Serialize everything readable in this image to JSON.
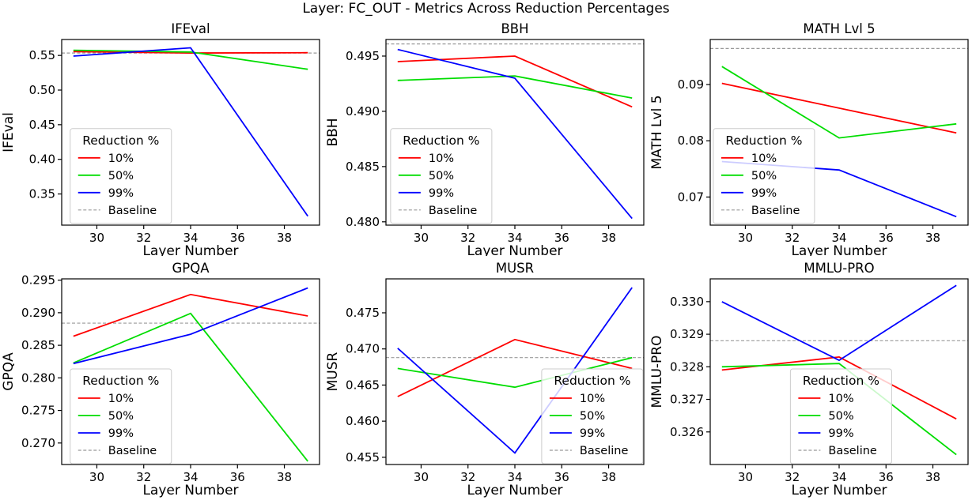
{
  "figure": {
    "title": "Layer: FC_OUT - Metrics Across Reduction Percentages"
  },
  "style": {
    "red": "#ff0000",
    "green": "#00dd00",
    "blue": "#0000ff",
    "baseline_color": "#999999",
    "axis_color": "#000000",
    "legend_border": "#cccccc"
  },
  "legend": {
    "title": "Reduction %",
    "entries": [
      {
        "label": "10%",
        "color": "#ff0000",
        "dashed": false
      },
      {
        "label": "50%",
        "color": "#00dd00",
        "dashed": false
      },
      {
        "label": "99%",
        "color": "#0000ff",
        "dashed": false
      },
      {
        "label": "Baseline",
        "color": "#999999",
        "dashed": true
      }
    ]
  },
  "chart_data": [
    {
      "type": "line",
      "title": "IFEval",
      "ylabel": "IFEval",
      "xlabel": "Layer Number",
      "x": [
        29,
        34,
        39
      ],
      "series": [
        {
          "name": "10%",
          "color": "#ff0000",
          "values": [
            0.5555,
            0.5535,
            0.554
          ]
        },
        {
          "name": "50%",
          "color": "#00dd00",
          "values": [
            0.5575,
            0.555,
            0.53
          ]
        },
        {
          "name": "99%",
          "color": "#0000ff",
          "values": [
            0.549,
            0.561,
            0.318
          ]
        }
      ],
      "baseline": 0.5535,
      "xlim": [
        28.5,
        39.5
      ],
      "ylim": [
        0.305,
        0.573
      ],
      "xticks": [
        30,
        32,
        34,
        36,
        38
      ],
      "yticks": [
        0.35,
        0.4,
        0.45,
        0.5,
        0.55
      ],
      "ytick_decimals": 2,
      "legend_pos": {
        "x": 0.033,
        "y": 0.48
      }
    },
    {
      "type": "line",
      "title": "BBH",
      "ylabel": "BBH",
      "xlabel": "Layer Number",
      "x": [
        29,
        34,
        39
      ],
      "series": [
        {
          "name": "10%",
          "color": "#ff0000",
          "values": [
            0.4945,
            0.495,
            0.4904
          ]
        },
        {
          "name": "50%",
          "color": "#00dd00",
          "values": [
            0.4928,
            0.4932,
            0.4912
          ]
        },
        {
          "name": "99%",
          "color": "#0000ff",
          "values": [
            0.4956,
            0.493,
            0.4803
          ]
        }
      ],
      "baseline": 0.4961,
      "xlim": [
        28.5,
        39.5
      ],
      "ylim": [
        0.4797,
        0.4965
      ],
      "xticks": [
        30,
        32,
        34,
        36,
        38
      ],
      "yticks": [
        0.48,
        0.485,
        0.49,
        0.495
      ],
      "ytick_decimals": 3,
      "legend_pos": {
        "x": 0.018,
        "y": 0.48
      }
    },
    {
      "type": "line",
      "title": "MATH Lvl 5",
      "ylabel": "MATH Lvl 5",
      "xlabel": "Layer Number",
      "x": [
        29,
        34,
        39
      ],
      "series": [
        {
          "name": "10%",
          "color": "#ff0000",
          "values": [
            0.0902,
            0.0858,
            0.0814
          ]
        },
        {
          "name": "50%",
          "color": "#00dd00",
          "values": [
            0.0932,
            0.0805,
            0.083
          ]
        },
        {
          "name": "99%",
          "color": "#0000ff",
          "values": [
            0.0763,
            0.0748,
            0.0665
          ]
        }
      ],
      "baseline": 0.0964,
      "xlim": [
        28.5,
        39.5
      ],
      "ylim": [
        0.065,
        0.098
      ],
      "xticks": [
        30,
        32,
        34,
        36,
        38
      ],
      "yticks": [
        0.07,
        0.08,
        0.09
      ],
      "ytick_decimals": 2,
      "legend_pos": {
        "x": 0.012,
        "y": 0.48
      }
    },
    {
      "type": "line",
      "title": "GPQA",
      "ylabel": "GPQA",
      "xlabel": "Layer Number",
      "x": [
        29,
        34,
        39
      ],
      "series": [
        {
          "name": "10%",
          "color": "#ff0000",
          "values": [
            0.2864,
            0.2928,
            0.2895
          ]
        },
        {
          "name": "50%",
          "color": "#00dd00",
          "values": [
            0.2823,
            0.2899,
            0.2672
          ]
        },
        {
          "name": "99%",
          "color": "#0000ff",
          "values": [
            0.2822,
            0.2867,
            0.2938
          ]
        }
      ],
      "baseline": 0.2884,
      "xlim": [
        28.5,
        39.5
      ],
      "ylim": [
        0.2667,
        0.2952
      ],
      "xticks": [
        30,
        32,
        34,
        36,
        38
      ],
      "yticks": [
        0.27,
        0.275,
        0.28,
        0.285,
        0.29,
        0.295
      ],
      "ytick_decimals": 3,
      "legend_pos": {
        "x": 0.033,
        "y": 0.485
      }
    },
    {
      "type": "line",
      "title": "MUSR",
      "ylabel": "MUSR",
      "xlabel": "Layer Number",
      "x": [
        29,
        34,
        39
      ],
      "series": [
        {
          "name": "10%",
          "color": "#ff0000",
          "values": [
            0.4634,
            0.4713,
            0.4673
          ]
        },
        {
          "name": "50%",
          "color": "#00dd00",
          "values": [
            0.4673,
            0.4647,
            0.4688
          ]
        },
        {
          "name": "99%",
          "color": "#0000ff",
          "values": [
            0.4701,
            0.4556,
            0.4785
          ]
        }
      ],
      "baseline": 0.4688,
      "xlim": [
        28.5,
        39.5
      ],
      "ylim": [
        0.454,
        0.4797
      ],
      "xticks": [
        30,
        32,
        34,
        36,
        38
      ],
      "yticks": [
        0.455,
        0.46,
        0.465,
        0.47,
        0.475
      ],
      "ytick_decimals": 3,
      "legend_pos": {
        "x": 0.604,
        "y": 0.485
      }
    },
    {
      "type": "line",
      "title": "MMLU-PRO",
      "ylabel": "MMLU-PRO",
      "xlabel": "Layer Number",
      "x": [
        29,
        34,
        39
      ],
      "series": [
        {
          "name": "10%",
          "color": "#ff0000",
          "values": [
            0.3279,
            0.3283,
            0.3264
          ]
        },
        {
          "name": "50%",
          "color": "#00dd00",
          "values": [
            0.328,
            0.3281,
            0.3253
          ]
        },
        {
          "name": "99%",
          "color": "#0000ff",
          "values": [
            0.33,
            0.3282,
            0.3305
          ]
        }
      ],
      "baseline": 0.3288,
      "xlim": [
        28.5,
        39.5
      ],
      "ylim": [
        0.325,
        0.3307
      ],
      "xticks": [
        30,
        32,
        34,
        36,
        38
      ],
      "yticks": [
        0.326,
        0.327,
        0.328,
        0.329,
        0.33
      ],
      "ytick_decimals": 3,
      "legend_pos": {
        "x": 0.311,
        "y": 0.485
      }
    }
  ]
}
